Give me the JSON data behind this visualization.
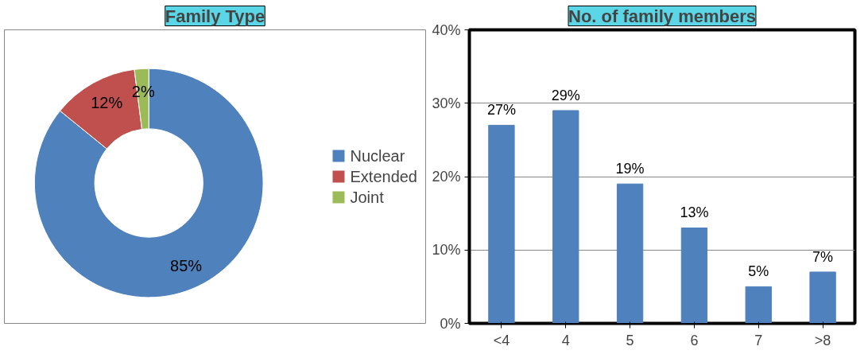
{
  "chart_data": [
    {
      "type": "donut",
      "title": "Family Type",
      "categories": [
        "Nuclear",
        "Extended",
        "Joint"
      ],
      "values": [
        85,
        12,
        2
      ],
      "colors": [
        "#4f81bd",
        "#c0504d",
        "#9bbb59"
      ],
      "value_labels": [
        "85%",
        "12%",
        "2%"
      ],
      "legend": "right"
    },
    {
      "type": "bar",
      "title": "No. of family members",
      "categories": [
        "<4",
        "4",
        "5",
        "6",
        "7",
        ">8"
      ],
      "values": [
        27,
        29,
        19,
        13,
        5,
        7
      ],
      "color": "#4f81bd",
      "value_labels": [
        "27%",
        "29%",
        "19%",
        "13%",
        "5%",
        "7%"
      ],
      "ylim": [
        0,
        40
      ],
      "yticks": [
        {
          "value": 0,
          "label": "0%"
        },
        {
          "value": 10,
          "label": "10%"
        },
        {
          "value": 20,
          "label": "20%"
        },
        {
          "value": 30,
          "label": "30%"
        },
        {
          "value": 40,
          "label": "40%"
        }
      ],
      "grid": "y"
    }
  ]
}
